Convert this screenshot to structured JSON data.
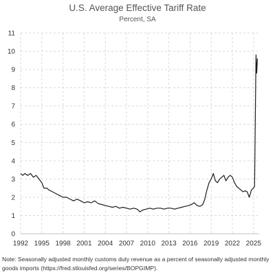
{
  "chart_data": {
    "type": "line",
    "title": "U.S. Average Effective Tariff Rate",
    "subtitle": "Percent, SA",
    "xlabel": "",
    "ylabel": "",
    "xlim": [
      1992,
      2025.8
    ],
    "ylim": [
      0,
      11
    ],
    "grid": true,
    "x_ticks": [
      "1992",
      "1995",
      "1998",
      "2001",
      "2004",
      "2007",
      "2010",
      "2013",
      "2016",
      "2019",
      "2022",
      "2025"
    ],
    "y_ticks": [
      "0",
      "1",
      "2",
      "3",
      "4",
      "5",
      "6",
      "7",
      "8",
      "9",
      "10",
      "11"
    ],
    "series": [
      {
        "name": "",
        "color": "#1a1a1a",
        "x": [
          1992.0,
          1992.3,
          1992.6,
          1993.0,
          1993.4,
          1993.8,
          1994.2,
          1994.6,
          1995.0,
          1995.3,
          1995.7,
          1996.0,
          1996.5,
          1997.0,
          1997.5,
          1998.0,
          1998.5,
          1999.0,
          1999.5,
          2000.0,
          2000.5,
          2001.0,
          2001.5,
          2002.0,
          2002.5,
          2003.0,
          2003.5,
          2004.0,
          2004.5,
          2005.0,
          2005.5,
          2006.0,
          2006.5,
          2007.0,
          2007.5,
          2008.0,
          2008.5,
          2008.9,
          2009.3,
          2009.8,
          2010.3,
          2010.8,
          2011.3,
          2011.8,
          2012.3,
          2012.8,
          2013.3,
          2013.8,
          2014.3,
          2014.8,
          2015.3,
          2015.8,
          2016.2,
          2016.6,
          2017.0,
          2017.4,
          2017.8,
          2018.1,
          2018.4,
          2018.7,
          2019.0,
          2019.3,
          2019.6,
          2019.9,
          2020.2,
          2020.5,
          2020.8,
          2021.1,
          2021.4,
          2021.7,
          2022.0,
          2022.3,
          2022.6,
          2022.9,
          2023.2,
          2023.5,
          2023.8,
          2024.1,
          2024.4,
          2024.7,
          2025.0,
          2025.15,
          2025.25,
          2025.35,
          2025.45,
          2025.55
        ],
        "y": [
          3.3,
          3.2,
          3.3,
          3.2,
          3.3,
          3.1,
          3.2,
          3.0,
          2.8,
          2.5,
          2.5,
          2.4,
          2.3,
          2.2,
          2.1,
          2.0,
          2.0,
          1.9,
          1.8,
          1.9,
          1.8,
          1.7,
          1.75,
          1.7,
          1.8,
          1.65,
          1.6,
          1.55,
          1.5,
          1.45,
          1.5,
          1.4,
          1.45,
          1.4,
          1.35,
          1.4,
          1.35,
          1.2,
          1.3,
          1.35,
          1.4,
          1.35,
          1.4,
          1.4,
          1.35,
          1.4,
          1.4,
          1.35,
          1.4,
          1.45,
          1.5,
          1.55,
          1.6,
          1.7,
          1.55,
          1.5,
          1.6,
          1.9,
          2.4,
          2.8,
          3.0,
          3.3,
          2.9,
          2.8,
          3.0,
          3.1,
          3.2,
          2.9,
          3.1,
          3.2,
          3.1,
          2.8,
          2.6,
          2.5,
          2.4,
          2.3,
          2.35,
          2.3,
          2.0,
          2.4,
          2.5,
          2.6,
          6.5,
          9.8,
          8.8,
          9.6
        ]
      }
    ],
    "note": "Note: Seasonally adjusted monthly customs duty revenue as a percent of seasonally adjusted monthly goods imports (https://fred.stlouisfed.org/series/BOPGIMP)."
  }
}
